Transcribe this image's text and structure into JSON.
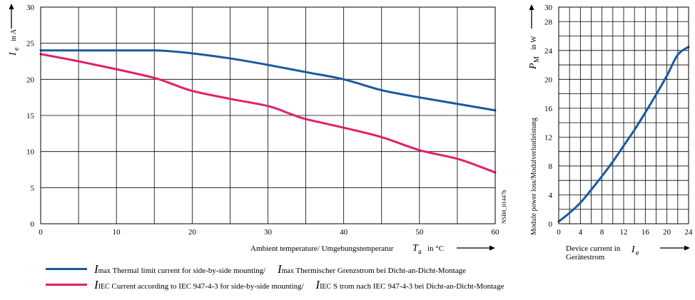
{
  "colors": {
    "i_max": "#1a5a9e",
    "i_iec": "#e0206c",
    "grid": "#000000"
  },
  "chart_data": [
    {
      "type": "line",
      "x_axis": {
        "label": "Ambient temperature/   Umgebungstemperatur",
        "symbol": "T",
        "symbol_sub": "a",
        "unit": "in °C",
        "range": [
          0,
          60
        ],
        "ticks": [
          "0",
          "10",
          "20",
          "30",
          "40",
          "50",
          "60"
        ]
      },
      "y_axis": {
        "symbol": "I",
        "symbol_sub": "e",
        "unit": "in A",
        "range": [
          0,
          30
        ],
        "ticks": [
          "0",
          "5",
          "10",
          "15",
          "20",
          "25",
          "30"
        ]
      },
      "grid": true,
      "series": [
        {
          "name": "I_max",
          "x": [
            0,
            5,
            10,
            15,
            17,
            20,
            25,
            30,
            35,
            40,
            45,
            50,
            55,
            60
          ],
          "y": [
            24,
            24,
            24,
            24,
            23.9,
            23.6,
            22.9,
            22.0,
            21.0,
            20.0,
            18.5,
            17.5,
            16.6,
            15.7
          ]
        },
        {
          "name": "I_IEC",
          "x": [
            0,
            5,
            10,
            15,
            17,
            20,
            25,
            30,
            33,
            35,
            40,
            45,
            50,
            55,
            58,
            60
          ],
          "y": [
            23.5,
            22.5,
            21.4,
            20.2,
            19.5,
            18.4,
            17.3,
            16.3,
            15.2,
            14.5,
            13.3,
            12.0,
            10.2,
            9.0,
            7.9,
            7.1
          ]
        }
      ],
      "annotation": "NSB0_01447b"
    },
    {
      "type": "line",
      "x_axis": {
        "label": "Device current in",
        "label2": "Gerätestrom",
        "symbol": "I",
        "symbol_sub": "e",
        "range": [
          0,
          24
        ],
        "ticks": [
          "0",
          "4",
          "8",
          "12",
          "16",
          "20",
          "24"
        ]
      },
      "y_axis": {
        "label": "Module power loss/Modulverlustleistung",
        "symbol": "P",
        "symbol_sub": "M",
        "unit": "in W",
        "range": [
          0,
          30
        ],
        "ticks": [
          "0",
          "4",
          "8",
          "12",
          "16",
          "20",
          "24",
          "28",
          "30"
        ]
      },
      "grid": true,
      "series": [
        {
          "name": "P_M",
          "x": [
            0,
            2,
            4,
            6,
            8,
            10,
            12,
            14,
            16,
            18,
            20,
            22,
            24
          ],
          "y": [
            0.3,
            1.5,
            2.9,
            4.7,
            6.6,
            8.6,
            10.8,
            13.0,
            15.4,
            17.9,
            20.5,
            23.4,
            24.5
          ]
        }
      ]
    }
  ],
  "legend": [
    {
      "symbol": "I",
      "sub": "max",
      "en": "Thermal limit current for side-by-side mounting/",
      "de": "Thermischer Grenzstrom bei Dicht-an-Dicht-Montage"
    },
    {
      "symbol": "I",
      "sub": "IEC",
      "en": "Current according to IEC 947-4-3 for side-by-side mounting/",
      "de": "S trom nach IEC 947-4-3 bei Dicht-an-Dicht-Montage"
    }
  ]
}
